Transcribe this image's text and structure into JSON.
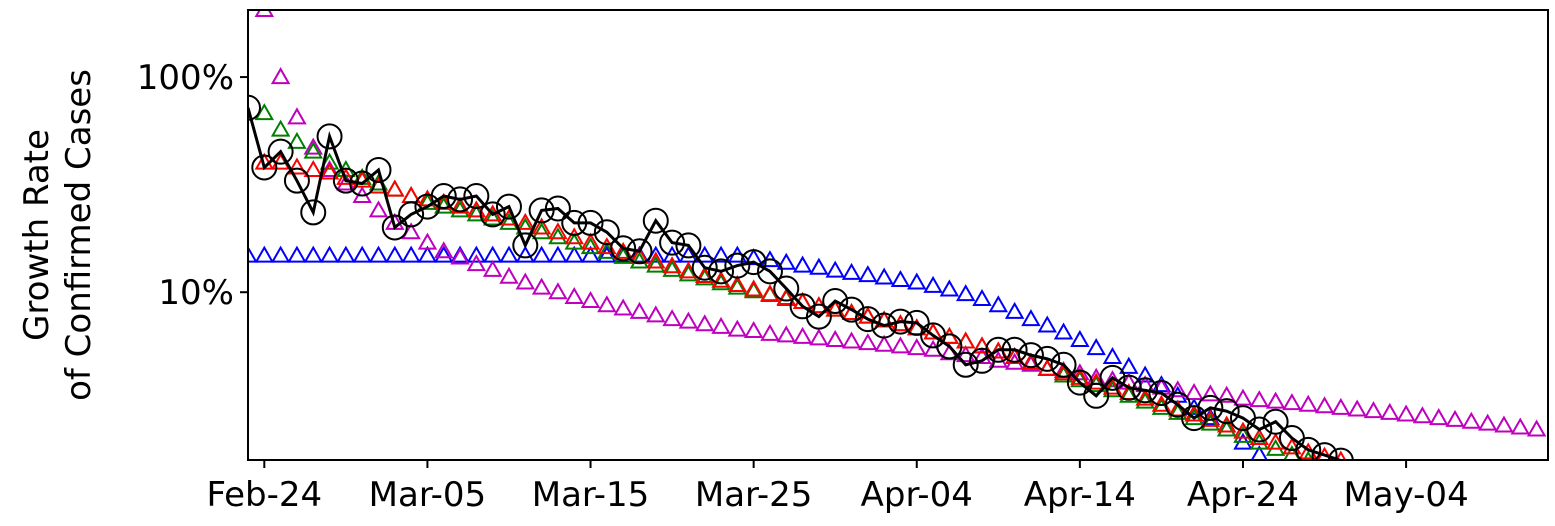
{
  "chart_data": {
    "type": "scatter",
    "ylabel": [
      "Growth Rate",
      "of Confirmed Cases"
    ],
    "log_y": true,
    "xlim": [
      -1,
      78.7
    ],
    "ylim": [
      1.66,
      205
    ],
    "xticks": [
      {
        "value": 0,
        "label": "Feb-24"
      },
      {
        "value": 10,
        "label": "Mar-05"
      },
      {
        "value": 20,
        "label": "Mar-15"
      },
      {
        "value": 30,
        "label": "Mar-25"
      },
      {
        "value": 40,
        "label": "Apr-04"
      },
      {
        "value": 50,
        "label": "Apr-14"
      },
      {
        "value": 60,
        "label": "Apr-24"
      },
      {
        "value": 70,
        "label": "May-04"
      }
    ],
    "yticks": [
      {
        "value": 10,
        "label": "10%"
      },
      {
        "value": 100,
        "label": "100%"
      }
    ],
    "x": [
      -1,
      0,
      1,
      2,
      3,
      4,
      5,
      6,
      7,
      8,
      9,
      10,
      11,
      12,
      13,
      14,
      15,
      16,
      17,
      18,
      19,
      20,
      21,
      22,
      23,
      24,
      25,
      26,
      27,
      28,
      29,
      30,
      31,
      32,
      33,
      34,
      35,
      36,
      37,
      38,
      39,
      40,
      41,
      42,
      43,
      44,
      45,
      46,
      47,
      48,
      49,
      50,
      51,
      52,
      53,
      54,
      55,
      56,
      57,
      58,
      59,
      60,
      61,
      62,
      63,
      64,
      65,
      66,
      67,
      68,
      69,
      70,
      71,
      72,
      73,
      74,
      75,
      76,
      77,
      78
    ],
    "series": [
      {
        "color": "#0000ff",
        "marker": "triangle",
        "line": false,
        "values": [
          14.8,
          14.8,
          14.8,
          14.8,
          14.8,
          14.8,
          14.8,
          14.8,
          14.8,
          14.8,
          14.8,
          14.8,
          14.8,
          14.8,
          14.8,
          14.8,
          14.8,
          14.8,
          14.8,
          14.8,
          14.8,
          14.8,
          14.8,
          14.8,
          14.8,
          14.8,
          14.8,
          14.8,
          14.8,
          14.8,
          14.8,
          14.4,
          14.1,
          13.7,
          13.3,
          13.0,
          12.6,
          12.3,
          12.0,
          11.7,
          11.4,
          11.1,
          10.7,
          10.3,
          9.8,
          9.3,
          8.7,
          8.1,
          7.5,
          7.0,
          6.5,
          6.0,
          5.5,
          5.0,
          4.5,
          4.1,
          3.7,
          3.3,
          2.9,
          2.6,
          2.3,
          2.0,
          1.75,
          null,
          null,
          null,
          null,
          null,
          null,
          null,
          null,
          null,
          null,
          null,
          null,
          null,
          null,
          null,
          null,
          null
        ]
      },
      {
        "color": "#bf00bf",
        "marker": "triangle",
        "line": false,
        "values": [
          null,
          205,
          100,
          65,
          47,
          37,
          32,
          28,
          24,
          21,
          19,
          17,
          15.5,
          14.5,
          13.5,
          12.7,
          11.8,
          11.1,
          10.5,
          10.0,
          9.5,
          9.1,
          8.7,
          8.4,
          8.1,
          7.8,
          7.5,
          7.3,
          7.1,
          6.9,
          6.7,
          6.6,
          6.4,
          6.3,
          6.2,
          6.1,
          6.0,
          5.9,
          5.8,
          5.7,
          5.6,
          5.5,
          5.4,
          5.2,
          5.1,
          5.0,
          4.8,
          4.7,
          4.6,
          4.4,
          4.3,
          4.2,
          4.0,
          3.9,
          3.8,
          3.7,
          3.6,
          3.5,
          3.4,
          3.35,
          3.3,
          3.2,
          3.15,
          3.1,
          3.05,
          3.0,
          2.95,
          2.9,
          2.85,
          2.8,
          2.75,
          2.7,
          2.65,
          2.6,
          2.55,
          2.5,
          2.45,
          2.4,
          2.35,
          2.3
        ]
      },
      {
        "color": "#008000",
        "marker": "triangle",
        "line": false,
        "values": [
          null,
          68,
          57,
          50,
          45,
          40,
          37,
          34,
          32,
          30,
          28,
          26,
          25,
          24,
          23,
          22,
          21,
          20,
          19,
          18,
          17,
          16.2,
          15.4,
          14.6,
          13.9,
          13.3,
          12.7,
          12.1,
          11.6,
          11.0,
          10.5,
          10.1,
          9.7,
          9.3,
          9.0,
          8.6,
          8.3,
          8.0,
          7.7,
          7.4,
          7.1,
          6.8,
          6.5,
          6.2,
          5.9,
          5.6,
          5.3,
          5.0,
          4.7,
          4.4,
          4.1,
          3.9,
          3.7,
          3.5,
          3.3,
          3.1,
          2.9,
          2.75,
          2.6,
          2.45,
          2.3,
          2.15,
          2.0,
          1.87,
          1.75,
          1.65,
          null,
          null,
          null,
          null,
          null,
          null,
          null,
          null,
          null,
          null,
          null,
          null,
          null,
          null
        ]
      },
      {
        "color": "#ff0000",
        "marker": "triangle",
        "line": false,
        "values": [
          null,
          40,
          40,
          38,
          37,
          36,
          34,
          33,
          31,
          30,
          28,
          27,
          26,
          25,
          24,
          23,
          22,
          21,
          20,
          19,
          18,
          17,
          16.2,
          15.4,
          14.6,
          13.9,
          13.2,
          12.5,
          11.9,
          11.3,
          10.8,
          10.3,
          9.8,
          9.4,
          9.0,
          8.6,
          8.3,
          8.0,
          7.7,
          7.4,
          7.1,
          6.8,
          6.5,
          6.2,
          5.9,
          5.6,
          5.3,
          5.0,
          4.7,
          4.4,
          4.2,
          4.0,
          3.8,
          3.6,
          3.4,
          3.2,
          3.0,
          2.85,
          2.7,
          2.55,
          2.4,
          2.25,
          2.1,
          2.0,
          1.9,
          1.8,
          1.72,
          1.65,
          null,
          null,
          null,
          null,
          null,
          null,
          null,
          null,
          null,
          null,
          null,
          null
        ]
      },
      {
        "color": "#000000",
        "marker": "circle",
        "line": true,
        "values": [
          72,
          38,
          45,
          33,
          23.5,
          53,
          33,
          32,
          37,
          20,
          23,
          25,
          28,
          27,
          28,
          23,
          25,
          16.5,
          24,
          24.5,
          21,
          21,
          19,
          16,
          15.5,
          21.5,
          17,
          16.5,
          13,
          12.5,
          13.3,
          13.8,
          12.5,
          10.4,
          8.6,
          7.7,
          9.1,
          8.3,
          7.5,
          7.0,
          7.3,
          7.2,
          6.3,
          5.6,
          4.6,
          4.8,
          5.4,
          5.4,
          5.1,
          4.9,
          4.6,
          3.8,
          3.3,
          4.0,
          3.6,
          3.5,
          3.4,
          3.0,
          2.6,
          2.9,
          2.8,
          2.6,
          2.3,
          2.5,
          2.1,
          1.85,
          1.75,
          1.65,
          null,
          null,
          null,
          null,
          null,
          null,
          null,
          null,
          null,
          null,
          null,
          null
        ]
      }
    ]
  }
}
